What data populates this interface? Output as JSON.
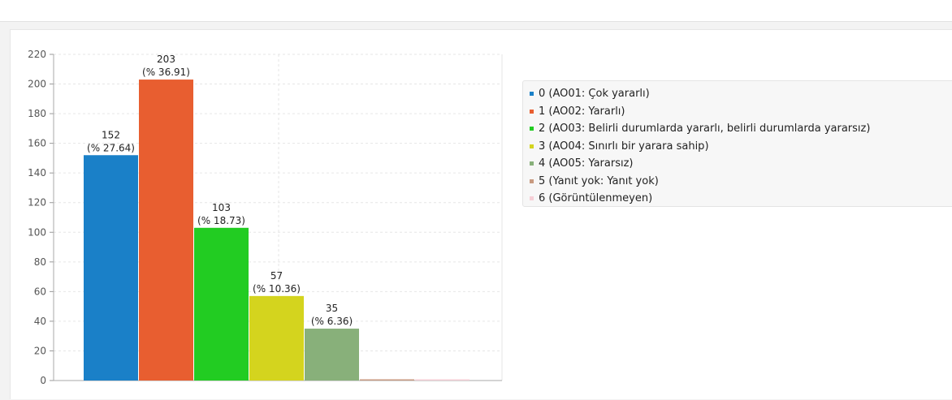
{
  "chart_data": {
    "type": "bar",
    "categories": [
      "0",
      "1",
      "2",
      "3",
      "4",
      "5",
      "6"
    ],
    "values": [
      152,
      203,
      103,
      57,
      35,
      0,
      0
    ],
    "percent_labels": [
      "(% 27.64)",
      "(% 36.91)",
      "(% 18.73)",
      "(% 10.36)",
      "(% 6.36)",
      "",
      ""
    ],
    "value_labels": [
      "152",
      "203",
      "103",
      "57",
      "35",
      "",
      ""
    ],
    "colors": [
      "#1a80c8",
      "#e85e30",
      "#22cc22",
      "#d4d41e",
      "#88b07a",
      "#c89a80",
      "#f6cfd6"
    ],
    "ylim": [
      0,
      220
    ],
    "y_ticks": [
      0,
      20,
      40,
      60,
      80,
      100,
      120,
      140,
      160,
      180,
      200,
      220
    ],
    "grid": true,
    "legend_position": "right",
    "title": "",
    "xlabel": "",
    "ylabel": ""
  },
  "legend": {
    "items": [
      {
        "label": "0 (AO01: Çok yararlı)",
        "color": "#1a80c8"
      },
      {
        "label": "1 (AO02: Yararlı)",
        "color": "#e85e30"
      },
      {
        "label": "2 (AO03: Belirli durumlarda yararlı, belirli durumlarda yararsız)",
        "color": "#22cc22"
      },
      {
        "label": "3 (AO04: Sınırlı bir yarara sahip)",
        "color": "#d4d41e"
      },
      {
        "label": "4 (AO05: Yararsız)",
        "color": "#88b07a"
      },
      {
        "label": "5 (Yanıt yok: Yanıt yok)",
        "color": "#c89a80"
      },
      {
        "label": "6 (Görüntülenmeyen)",
        "color": "#f6cfd6"
      }
    ]
  }
}
